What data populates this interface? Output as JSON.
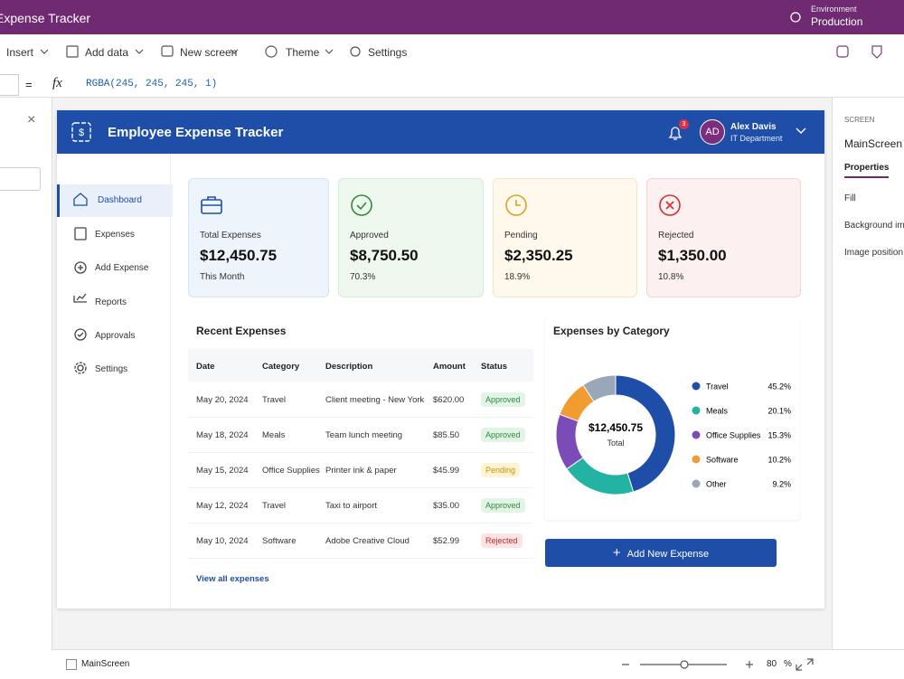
{
  "studio": {
    "app_name": "Expense Tracker",
    "environment_label": "Environment",
    "environment": "Production",
    "toolbar": [
      "Insert",
      "Add data",
      "New screen",
      "Theme",
      "Settings"
    ],
    "formula": {
      "equals": "=",
      "fx": "fx",
      "value": "RGBA(245, 245, 245, 1)"
    },
    "right_panel": {
      "section": "SCREEN",
      "screen": "MainScreen",
      "tab": "Properties",
      "properties": [
        "Fill",
        "Background image",
        "Image position"
      ]
    },
    "status_bar": {
      "screen": "MainScreen",
      "zoom": "80",
      "zoom_unit": "%"
    }
  },
  "app": {
    "title": "Employee Expense Tracker",
    "notifications": "3",
    "user": {
      "initials": "AD",
      "name": "Alex Davis",
      "department": "IT Department"
    },
    "nav": [
      "Dashboard",
      "Expenses",
      "Add Expense",
      "Reports",
      "Approvals",
      "Settings"
    ],
    "cards": [
      {
        "label": "Total Expenses",
        "amount": "$12,450.75",
        "note": "This Month"
      },
      {
        "label": "Approved",
        "amount": "$8,750.50",
        "note": "70.3%"
      },
      {
        "label": "Pending",
        "amount": "$2,350.25",
        "note": "18.9%"
      },
      {
        "label": "Rejected",
        "amount": "$1,350.00",
        "note": "10.8%"
      }
    ],
    "recent": {
      "title": "Recent Expenses",
      "columns": [
        "Date",
        "Category",
        "Description",
        "Amount",
        "Status"
      ],
      "rows": [
        [
          "May 20, 2024",
          "Travel",
          "Client meeting - New York",
          "$620.00",
          "Approved"
        ],
        [
          "May 18, 2024",
          "Meals",
          "Team lunch meeting",
          "$85.50",
          "Approved"
        ],
        [
          "May 15, 2024",
          "Office Supplies",
          "Printer ink & paper",
          "$45.99",
          "Pending"
        ],
        [
          "May 12, 2024",
          "Travel",
          "Taxi to airport",
          "$35.00",
          "Approved"
        ],
        [
          "May 10, 2024",
          "Software",
          "Adobe Creative Cloud",
          "$52.99",
          "Rejected"
        ]
      ],
      "link": "View all expenses"
    },
    "button": "Add New Expense"
  },
  "chart_data": {
    "type": "donut",
    "title": "Expenses by Category",
    "center_value": "$12,450.75",
    "center_label": "Total",
    "categories": [
      "Travel",
      "Meals",
      "Office Supplies",
      "Software",
      "Other"
    ],
    "values": [
      45.2,
      20.1,
      15.3,
      10.2,
      9.2
    ],
    "value_labels": [
      "45.2%",
      "20.1%",
      "15.3%",
      "10.2%",
      "9.2%"
    ],
    "colors": [
      "#1f4ea8",
      "#22b3a3",
      "#7b4bb7",
      "#f29b30",
      "#9aa7b8"
    ]
  }
}
